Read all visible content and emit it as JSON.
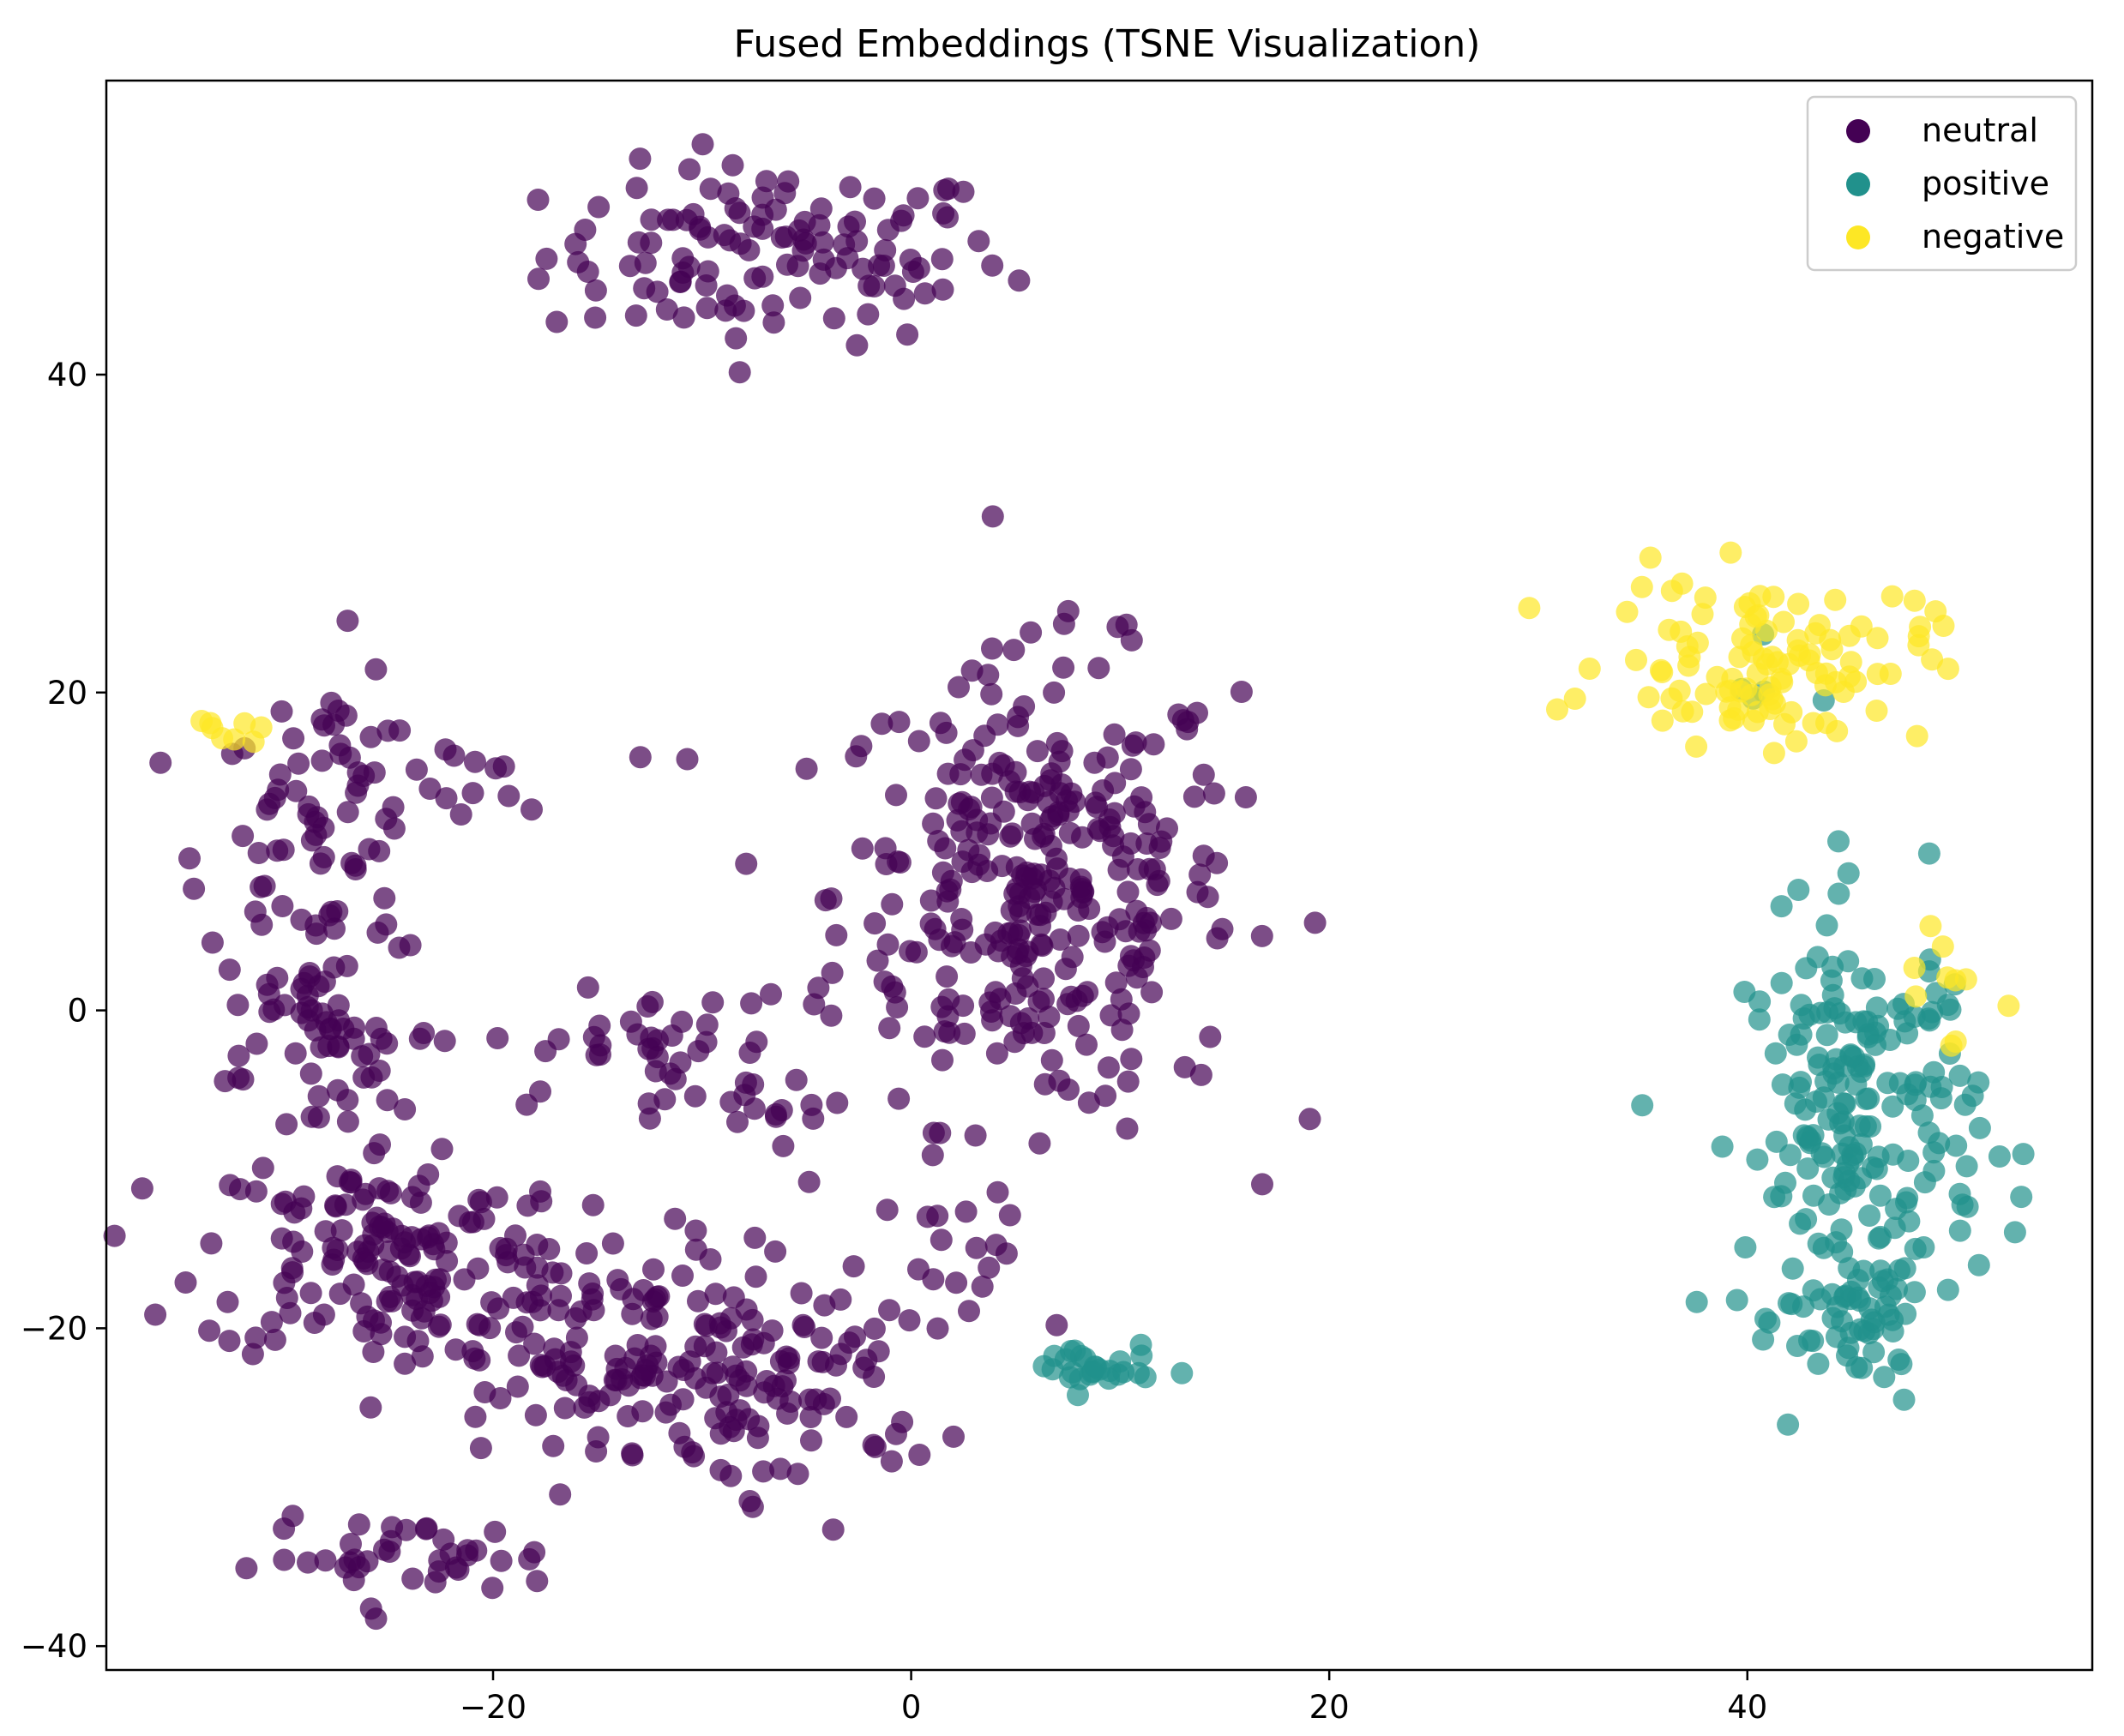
{
  "chart_data": {
    "type": "scatter",
    "title": "Fused Embeddings (TSNE Visualization)",
    "xlabel": "",
    "ylabel": "",
    "xlim": [
      -38.5,
      56.5
    ],
    "ylim": [
      -41.5,
      58.5
    ],
    "xticks": [
      -20,
      0,
      20,
      40
    ],
    "xtick_labels": [
      "−20",
      "0",
      "20",
      "40"
    ],
    "yticks": [
      -40,
      -20,
      0,
      20,
      40
    ],
    "ytick_labels": [
      "−40",
      "−20",
      "0",
      "20",
      "40"
    ],
    "grid": false,
    "legend_position": "top-right",
    "marker_alpha": 0.7,
    "series": [
      {
        "name": "neutral",
        "color": "#440154",
        "clusters": [
          {
            "cx": -6.5,
            "cy": 47.5,
            "sx": 5.5,
            "sy": 2.8,
            "n": 120
          },
          {
            "cx": 6.0,
            "cy": 7.5,
            "sx": 4.8,
            "sy": 7.2,
            "n": 330
          },
          {
            "cx": -28.5,
            "cy": 9.0,
            "sx": 2.6,
            "sy": 6.5,
            "n": 85
          },
          {
            "cx": -24.0,
            "cy": 14.5,
            "sx": 3.5,
            "sy": 1.8,
            "n": 25
          },
          {
            "cx": -28.0,
            "cy": -3.0,
            "sx": 2.0,
            "sy": 3.5,
            "n": 40
          },
          {
            "cx": -25.0,
            "cy": -15.0,
            "sx": 4.5,
            "sy": 3.5,
            "n": 140
          },
          {
            "cx": -14.5,
            "cy": -22.0,
            "sx": 5.0,
            "sy": 3.8,
            "n": 150
          },
          {
            "cx": -5.5,
            "cy": -23.5,
            "sx": 3.5,
            "sy": 3.5,
            "n": 60
          },
          {
            "cx": -13.0,
            "cy": -2.5,
            "sx": 3.5,
            "sy": 1.8,
            "n": 40
          },
          {
            "cx": -7.0,
            "cy": -5.5,
            "sx": 2.5,
            "sy": 1.5,
            "n": 12
          },
          {
            "cx": -24.0,
            "cy": -34.5,
            "sx": 3.5,
            "sy": 1.2,
            "n": 40
          },
          {
            "cx": 3.0,
            "cy": -16.0,
            "sx": 3.5,
            "sy": 2.5,
            "n": 18
          }
        ]
      },
      {
        "name": "positive",
        "color": "#21918c",
        "clusters": [
          {
            "cx": 45.5,
            "cy": -7.0,
            "sx": 2.8,
            "sy": 6.5,
            "n": 200
          },
          {
            "cx": 45.5,
            "cy": -19.5,
            "sx": 1.8,
            "sy": 2.0,
            "n": 45
          },
          {
            "cx": 8.5,
            "cy": -22.5,
            "sx": 1.5,
            "sy": 0.8,
            "n": 28
          },
          {
            "cx": 40.0,
            "cy": 18.5,
            "sx": 2.5,
            "sy": 2.0,
            "n": 5
          }
        ]
      },
      {
        "name": "negative",
        "color": "#fde725",
        "clusters": [
          {
            "cx": 41.0,
            "cy": 22.0,
            "sx": 3.8,
            "sy": 2.6,
            "n": 110
          },
          {
            "cx": -32.0,
            "cy": 18.0,
            "sx": 1.2,
            "sy": 1.0,
            "n": 8
          },
          {
            "cx": 49.5,
            "cy": 1.5,
            "sx": 2.0,
            "sy": 2.5,
            "n": 10
          }
        ]
      }
    ]
  }
}
